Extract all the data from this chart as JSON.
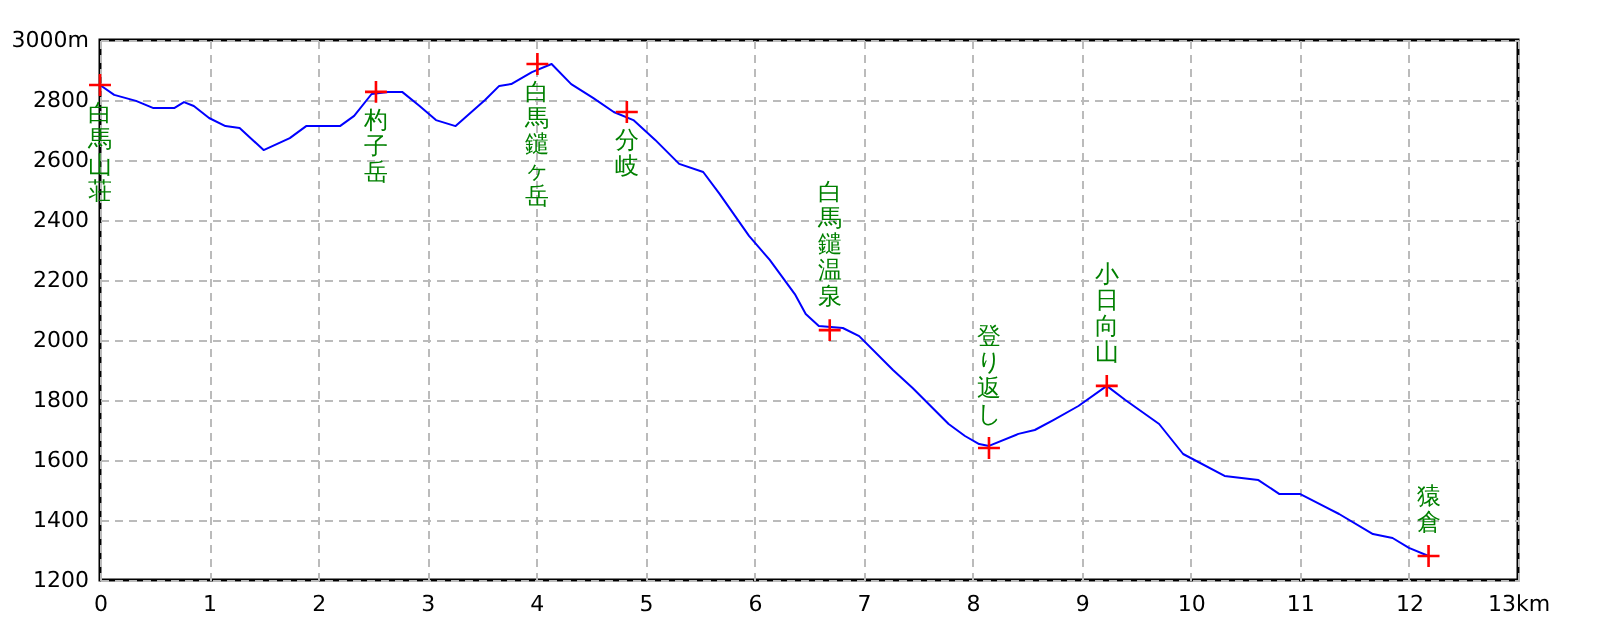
{
  "chart_data": {
    "type": "line",
    "xlim": [
      0,
      13
    ],
    "xticks": [
      0,
      1,
      2,
      3,
      4,
      5,
      6,
      7,
      8,
      9,
      10,
      11,
      12,
      {
        "value": 13,
        "label": "13km"
      }
    ],
    "ylim": [
      1200,
      3000
    ],
    "yticks": [
      1200,
      1400,
      1600,
      1800,
      2000,
      2200,
      2400,
      2600,
      2800,
      {
        "value": 3000,
        "label": "3000m"
      }
    ],
    "grid": true,
    "series": [
      {
        "type": "line",
        "color": "#0000ff",
        "x": [
          0,
          0.13,
          0.33,
          0.49,
          0.68,
          0.77,
          0.86,
          1.0,
          1.15,
          1.28,
          1.5,
          1.74,
          1.89,
          2.2,
          2.33,
          2.49,
          2.64,
          2.77,
          2.93,
          3.08,
          3.26,
          3.53,
          3.66,
          3.77,
          3.96,
          4.14,
          4.32,
          4.52,
          4.71,
          4.89,
          5.09,
          5.31,
          5.53,
          5.68,
          5.95,
          6.14,
          6.37,
          6.47,
          6.59,
          6.81,
          6.96,
          7.27,
          7.45,
          7.78,
          7.93,
          8.06,
          8.15,
          8.42,
          8.57,
          8.74,
          8.97,
          9.23,
          9.4,
          9.71,
          9.93,
          10.31,
          10.62,
          10.81,
          11.0,
          11.36,
          11.67,
          11.85,
          12.0,
          12.18
        ],
        "values": [
          2850,
          2817,
          2797,
          2773,
          2773,
          2793,
          2780,
          2740,
          2713,
          2707,
          2633,
          2673,
          2713,
          2713,
          2747,
          2820,
          2827,
          2827,
          2780,
          2733,
          2713,
          2800,
          2847,
          2853,
          2893,
          2920,
          2853,
          2807,
          2760,
          2733,
          2667,
          2587,
          2560,
          2487,
          2347,
          2267,
          2153,
          2087,
          2047,
          2040,
          2013,
          1900,
          1840,
          1720,
          1680,
          1653,
          1647,
          1687,
          1700,
          1733,
          1780,
          1847,
          1800,
          1720,
          1620,
          1547,
          1533,
          1487,
          1487,
          1420,
          1353,
          1340,
          1307,
          1280
        ]
      },
      {
        "type": "scatter",
        "color": "#ff0000",
        "marker": "cross",
        "x": [
          0,
          2.53,
          4.01,
          4.83,
          6.69,
          8.15,
          9.23,
          12.18
        ],
        "values": [
          2850,
          2827,
          2920,
          2760,
          2033,
          1640,
          1847,
          1280
        ]
      }
    ],
    "annotations": [
      {
        "text": "白馬山荘",
        "x": 0,
        "y": 2850
      },
      {
        "text": "杓子岳",
        "x": 2.53,
        "y": 2827
      },
      {
        "text": "白馬鑓ヶ岳",
        "x": 4.01,
        "y": 2920
      },
      {
        "text": "分岐",
        "x": 4.83,
        "y": 2760
      },
      {
        "text": "白馬鑓温泉",
        "x": 6.69,
        "y": 2033
      },
      {
        "text": "登り返し",
        "x": 8.15,
        "y": 1640
      },
      {
        "text": "小日向山",
        "x": 9.23,
        "y": 1847
      },
      {
        "text": "猿倉",
        "x": 12.18,
        "y": 1280
      }
    ]
  }
}
